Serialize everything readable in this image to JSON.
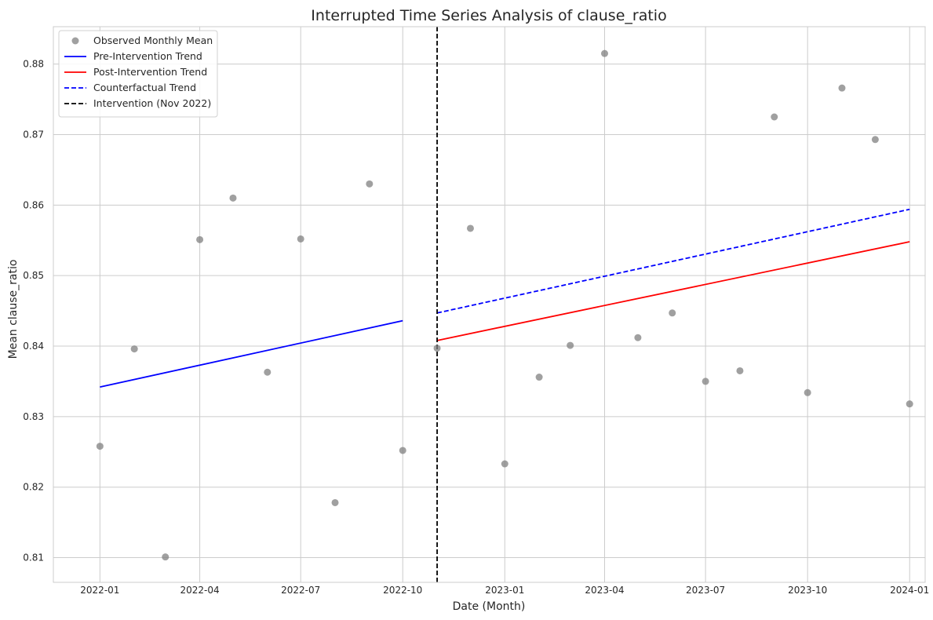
{
  "chart_data": {
    "type": "scatter",
    "title": "Interrupted Time Series Analysis of clause_ratio",
    "xlabel": "Date (Month)",
    "ylabel": "Mean clause_ratio",
    "x_ticks": [
      "2022-01",
      "2022-04",
      "2022-07",
      "2022-10",
      "2023-01",
      "2023-04",
      "2023-07",
      "2023-10",
      "2024-01"
    ],
    "y_ticks": [
      "0.81",
      "0.82",
      "0.83",
      "0.84",
      "0.85",
      "0.86",
      "0.87",
      "0.88"
    ],
    "xlim": [
      "2021-11-20",
      "2024-01-15"
    ],
    "ylim": [
      0.8065,
      0.8853
    ],
    "grid": true,
    "legend_position": "top-left",
    "series": [
      {
        "name": "Observed Monthly Mean",
        "kind": "scatter",
        "color": "#808080",
        "points": [
          {
            "x": "2022-01",
            "y": 0.8258
          },
          {
            "x": "2022-02",
            "y": 0.8396
          },
          {
            "x": "2022-03",
            "y": 0.8101
          },
          {
            "x": "2022-04",
            "y": 0.8551
          },
          {
            "x": "2022-05",
            "y": 0.861
          },
          {
            "x": "2022-06",
            "y": 0.8363
          },
          {
            "x": "2022-07",
            "y": 0.8552
          },
          {
            "x": "2022-08",
            "y": 0.8178
          },
          {
            "x": "2022-09",
            "y": 0.863
          },
          {
            "x": "2022-10",
            "y": 0.8252
          },
          {
            "x": "2022-11",
            "y": 0.8397
          },
          {
            "x": "2022-12",
            "y": 0.8567
          },
          {
            "x": "2023-01",
            "y": 0.8233
          },
          {
            "x": "2023-02",
            "y": 0.8356
          },
          {
            "x": "2023-03",
            "y": 0.8401
          },
          {
            "x": "2023-04",
            "y": 0.8815
          },
          {
            "x": "2023-05",
            "y": 0.8412
          },
          {
            "x": "2023-06",
            "y": 0.8447
          },
          {
            "x": "2023-07",
            "y": 0.835
          },
          {
            "x": "2023-08",
            "y": 0.8365
          },
          {
            "x": "2023-09",
            "y": 0.8725
          },
          {
            "x": "2023-10",
            "y": 0.8334
          },
          {
            "x": "2023-11",
            "y": 0.8766
          },
          {
            "x": "2023-12",
            "y": 0.8693
          },
          {
            "x": "2024-01",
            "y": 0.8318
          }
        ]
      },
      {
        "name": "Pre-Intervention Trend",
        "kind": "line",
        "color": "#0000ff",
        "dash": "solid",
        "points": [
          {
            "x": "2022-01",
            "y": 0.8342
          },
          {
            "x": "2022-10",
            "y": 0.8436
          }
        ]
      },
      {
        "name": "Post-Intervention Trend",
        "kind": "line",
        "color": "#ff0000",
        "dash": "solid",
        "points": [
          {
            "x": "2022-11",
            "y": 0.8408
          },
          {
            "x": "2024-01",
            "y": 0.8548
          }
        ]
      },
      {
        "name": "Counterfactual Trend",
        "kind": "line",
        "color": "#0000ff",
        "dash": "dashed",
        "points": [
          {
            "x": "2022-11",
            "y": 0.8447
          },
          {
            "x": "2024-01",
            "y": 0.8594
          }
        ]
      },
      {
        "name": "Intervention (Nov 2022)",
        "kind": "vline",
        "color": "#000000",
        "dash": "dashed",
        "x": "2022-11"
      }
    ]
  }
}
